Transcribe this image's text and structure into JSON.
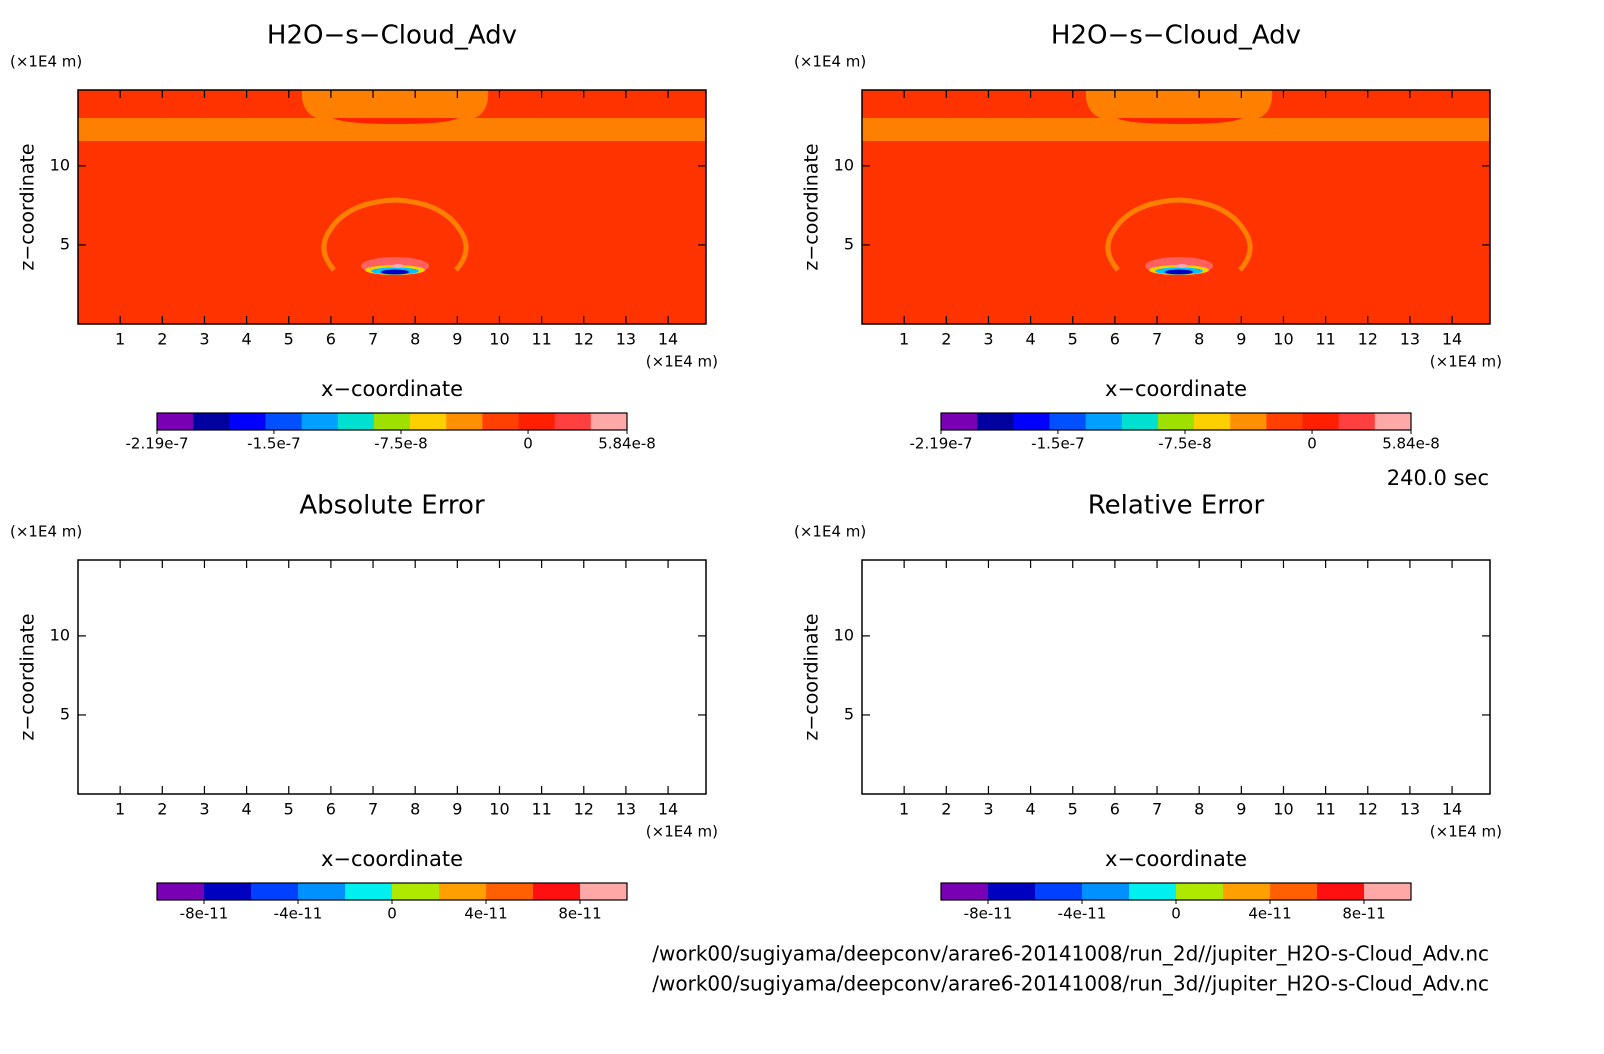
{
  "chart_data": [
    {
      "type": "heatmap",
      "title": "H2O−s−Cloud_Adv",
      "x_label": "x−coordinate",
      "y_label": "z−coordinate",
      "x_unit": "(×1E4 m)",
      "y_unit": "(×1E4 m)",
      "xlim": [
        0,
        14.9
      ],
      "ylim": [
        0,
        14.8
      ],
      "xticks": [
        1,
        2,
        3,
        4,
        5,
        6,
        7,
        8,
        9,
        10,
        11,
        12,
        13,
        14
      ],
      "yticks": [
        5,
        10
      ],
      "colorbar": {
        "clim": [
          -2.19e-07,
          5.84e-08
        ],
        "colors": [
          "#7a00b4",
          "#0000a0",
          "#0000ff",
          "#0050ff",
          "#00a0ff",
          "#00e0d0",
          "#a0e000",
          "#ffd000",
          "#ff9000",
          "#ff4000",
          "#ff2000",
          "#ff4040",
          "#ffa8a8"
        ],
        "ticks": [
          -2.19e-07,
          -1.5e-07,
          -7.5e-08,
          0,
          5.84e-08
        ]
      }
    },
    {
      "type": "heatmap",
      "title": "H2O−s−Cloud_Adv",
      "x_label": "x−coordinate",
      "y_label": "z−coordinate",
      "x_unit": "(×1E4 m)",
      "y_unit": "(×1E4 m)",
      "xlim": [
        0,
        14.9
      ],
      "ylim": [
        0,
        14.8
      ],
      "xticks": [
        1,
        2,
        3,
        4,
        5,
        6,
        7,
        8,
        9,
        10,
        11,
        12,
        13,
        14
      ],
      "yticks": [
        5,
        10
      ],
      "colorbar": {
        "clim": [
          -2.19e-07,
          5.84e-08
        ],
        "colors": [
          "#7a00b4",
          "#0000a0",
          "#0000ff",
          "#0050ff",
          "#00a0ff",
          "#00e0d0",
          "#a0e000",
          "#ffd000",
          "#ff9000",
          "#ff4000",
          "#ff2000",
          "#ff4040",
          "#ffa8a8"
        ],
        "ticks": [
          -2.19e-07,
          -1.5e-07,
          -7.5e-08,
          0,
          5.84e-08
        ]
      }
    },
    {
      "type": "heatmap",
      "title": "Absolute Error",
      "x_label": "x−coordinate",
      "y_label": "z−coordinate",
      "x_unit": "(×1E4 m)",
      "y_unit": "(×1E4 m)",
      "xlim": [
        0,
        14.9
      ],
      "ylim": [
        0,
        14.8
      ],
      "xticks": [
        1,
        2,
        3,
        4,
        5,
        6,
        7,
        8,
        9,
        10,
        11,
        12,
        13,
        14
      ],
      "yticks": [
        5,
        10
      ],
      "colorbar": {
        "clim": [
          -1e-10,
          1e-10
        ],
        "colors": [
          "#7a00b4",
          "#0000c0",
          "#0040ff",
          "#0090ff",
          "#00f0f0",
          "#b0e800",
          "#ffa000",
          "#ff6000",
          "#ff1010",
          "#ffa8a8"
        ],
        "ticks": [
          -8e-11,
          -4e-11,
          0,
          4e-11,
          8e-11
        ]
      }
    },
    {
      "type": "heatmap",
      "title": "Relative Error",
      "x_label": "x−coordinate",
      "y_label": "z−coordinate",
      "x_unit": "(×1E4 m)",
      "y_unit": "(×1E4 m)",
      "xlim": [
        0,
        14.9
      ],
      "ylim": [
        0,
        14.8
      ],
      "xticks": [
        1,
        2,
        3,
        4,
        5,
        6,
        7,
        8,
        9,
        10,
        11,
        12,
        13,
        14
      ],
      "yticks": [
        5,
        10
      ],
      "colorbar": {
        "clim": [
          -1e-10,
          1e-10
        ],
        "colors": [
          "#7a00b4",
          "#0000c0",
          "#0040ff",
          "#0090ff",
          "#00f0f0",
          "#b0e800",
          "#ffa000",
          "#ff6000",
          "#ff1010",
          "#ffa8a8"
        ],
        "ticks": [
          -8e-11,
          -4e-11,
          0,
          4e-11,
          8e-11
        ]
      }
    }
  ],
  "time_label": "240.0 sec",
  "files": [
    "/work00/sugiyama/deepconv/arare6-20141008/run_2d//jupiter_H2O-s-Cloud_Adv.nc",
    "/work00/sugiyama/deepconv/arare6-20141008/run_3d//jupiter_H2O-s-Cloud_Adv.nc"
  ]
}
